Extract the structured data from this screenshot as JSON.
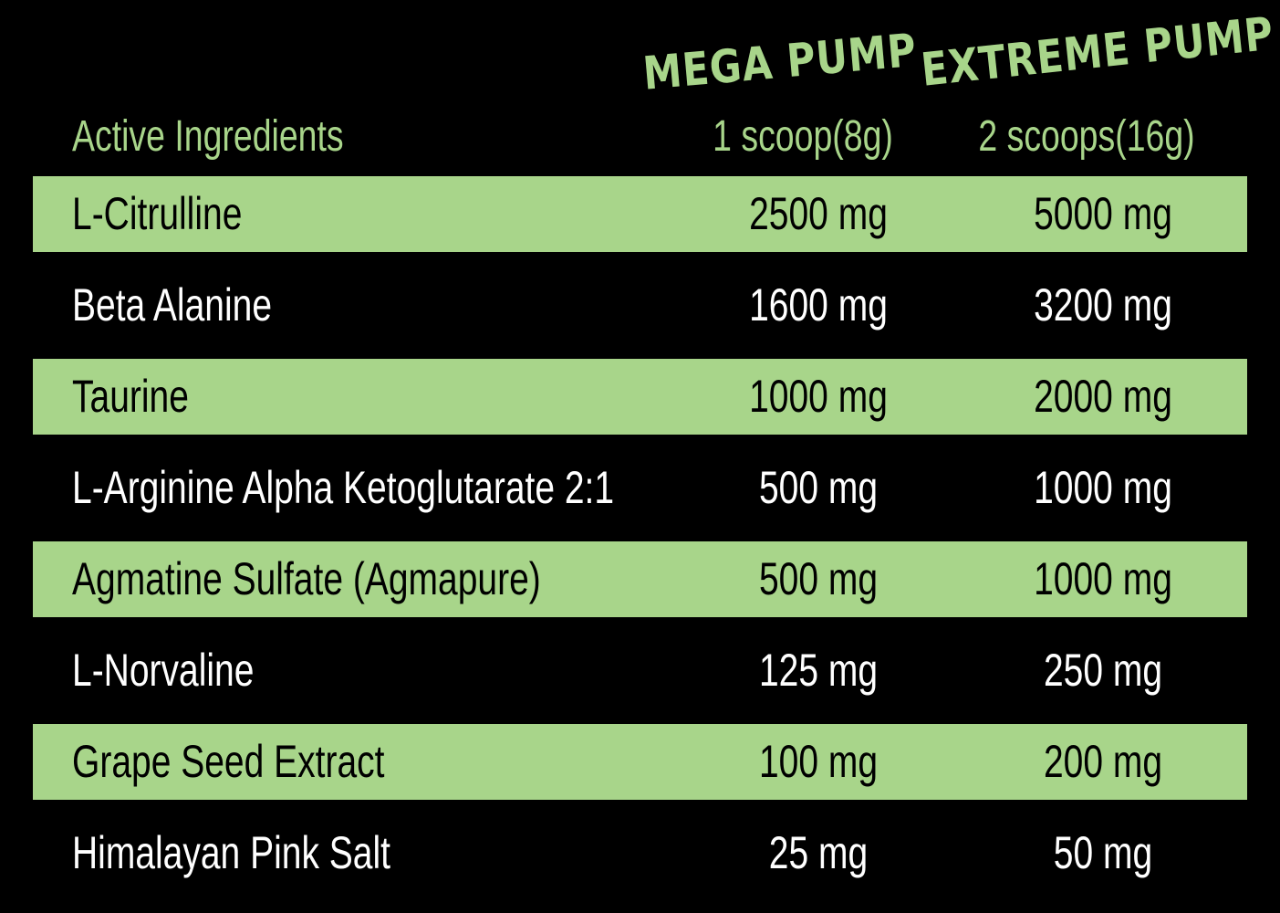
{
  "colors": {
    "accent": "#a8d58a",
    "background": "#000000",
    "text_on_dark": "#ffffff",
    "text_on_green": "#000000"
  },
  "header": {
    "ingredients_label": "Active Ingredients",
    "products": [
      {
        "name": "MEGA PUMP",
        "serving": "1 scoop(8g)"
      },
      {
        "name": "EXTREME PUMP",
        "serving": "2 scoops(16g)"
      }
    ]
  },
  "rows": [
    {
      "name": "L-Citrulline",
      "mega": "2500 mg",
      "extreme": "5000 mg"
    },
    {
      "name": "Beta Alanine",
      "mega": "1600 mg",
      "extreme": "3200 mg"
    },
    {
      "name": "Taurine",
      "mega": "1000 mg",
      "extreme": "2000 mg"
    },
    {
      "name": "L-Arginine Alpha Ketoglutarate 2:1",
      "mega": "500 mg",
      "extreme": "1000 mg"
    },
    {
      "name": "Agmatine Sulfate (Agmapure)",
      "mega": "500 mg",
      "extreme": "1000 mg"
    },
    {
      "name": "L-Norvaline",
      "mega": "125 mg",
      "extreme": "250 mg"
    },
    {
      "name": "Grape Seed Extract",
      "mega": "100 mg",
      "extreme": "200 mg"
    },
    {
      "name": "Himalayan Pink Salt",
      "mega": "25 mg",
      "extreme": "50 mg"
    }
  ]
}
